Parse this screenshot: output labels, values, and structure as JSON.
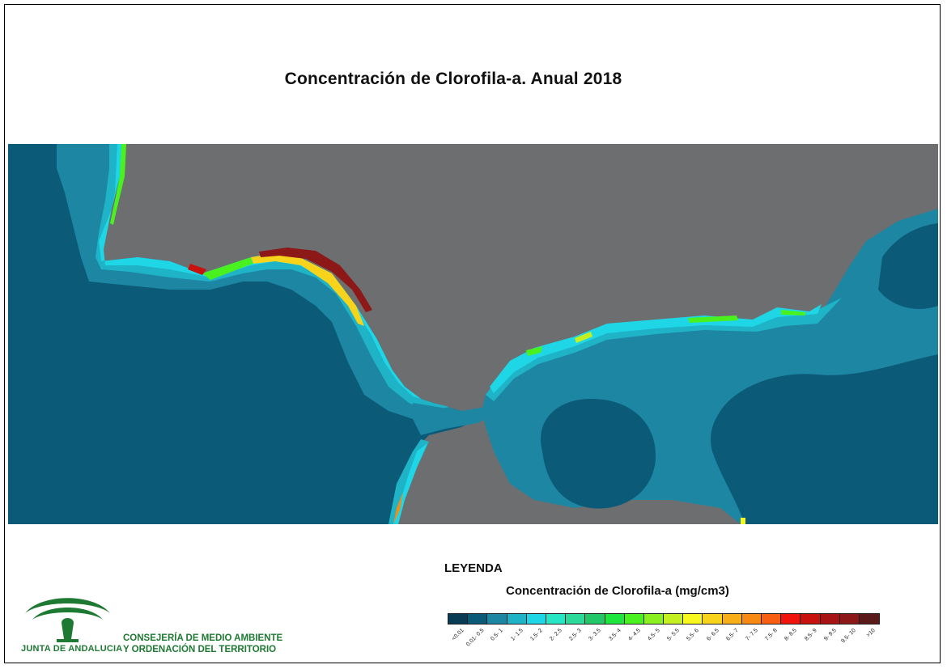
{
  "title": "Concentración de Clorofila-a. Anual 2018",
  "legend": {
    "heading": "LEYENDA",
    "subtitle": "Concentración de Clorofila-a (mg/cm3)",
    "classes": [
      {
        "label": "<0.01",
        "color": "#0a3b55"
      },
      {
        "label": "0.01- 0.5",
        "color": "#0b5b78"
      },
      {
        "label": "0.5- 1",
        "color": "#1d86a3"
      },
      {
        "label": "1- 1.5",
        "color": "#1fb3c8"
      },
      {
        "label": "1.5- 2",
        "color": "#1fd6e6"
      },
      {
        "label": "2- 2.5",
        "color": "#28e5c4"
      },
      {
        "label": "2.5- 3",
        "color": "#2dd998"
      },
      {
        "label": "3- 3.5",
        "color": "#22c768"
      },
      {
        "label": "3.5- 4",
        "color": "#1ee63c"
      },
      {
        "label": "4- 4.5",
        "color": "#49f21f"
      },
      {
        "label": "4.5- 5",
        "color": "#8bf020"
      },
      {
        "label": "5- 5.5",
        "color": "#c4f022"
      },
      {
        "label": "5.5- 6",
        "color": "#f8f81e"
      },
      {
        "label": "6- 6.5",
        "color": "#f8d31b"
      },
      {
        "label": "6.5- 7",
        "color": "#f8ae18"
      },
      {
        "label": "7- 7.5",
        "color": "#f88a14"
      },
      {
        "label": "7.5- 8",
        "color": "#f85f10"
      },
      {
        "label": "8- 8.5",
        "color": "#f0150c"
      },
      {
        "label": "8.5- 9",
        "color": "#c8120e"
      },
      {
        "label": "9- 9.5",
        "color": "#a81414"
      },
      {
        "label": "9.5- 10",
        "color": "#8c1818"
      },
      {
        "label": ">10",
        "color": "#5a1a1a"
      }
    ]
  },
  "map_colors": {
    "land": "#6d6e70",
    "ocean_deep": "#0b5b78",
    "shelf": "#1d86a3",
    "mid": "#1fb3c8",
    "coast": "#1fd6e6"
  },
  "logo": {
    "name": "JUNTA DE ANDALUCIA",
    "color": "#1e7a32"
  },
  "department": {
    "line1": "CONSEJERÍA DE MEDIO AMBIENTE",
    "line2": "Y ORDENACIÓN DEL TERRITORIO"
  }
}
